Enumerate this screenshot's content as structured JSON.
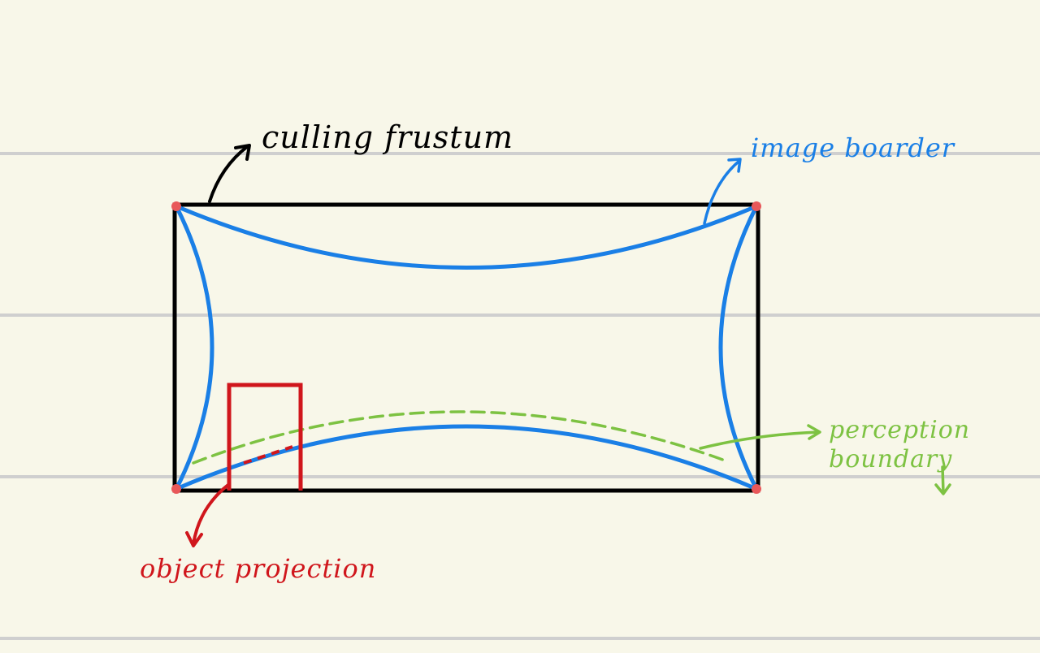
{
  "labels": {
    "culling_frustum": "culling frustum",
    "image_border": "image boarder",
    "perception_line1": "perception",
    "perception_line2": "boundary",
    "object_projection": "object projection"
  },
  "colors": {
    "background": "#f8f7e9",
    "ruled_line": "#cfcfcf",
    "frustum": "#000000",
    "image_border": "#1a7fe6",
    "perception": "#7dc242",
    "object": "#d0161c",
    "corner_dot": "#e8585a"
  }
}
